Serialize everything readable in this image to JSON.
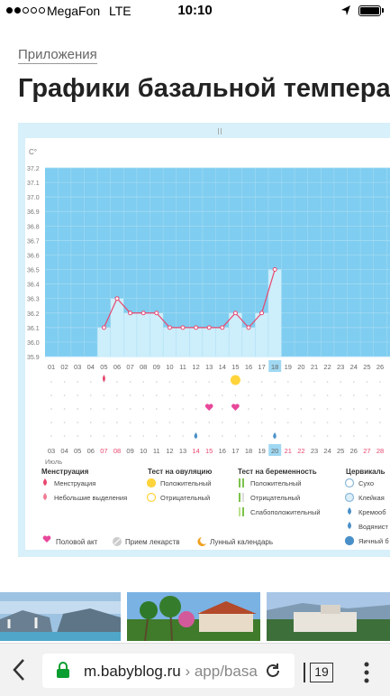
{
  "status": {
    "carrier": "MegaFon",
    "network": "LTE",
    "time": "10:10"
  },
  "breadcrumb": "Приложения",
  "title": "Графики базальной температ",
  "chart_data": {
    "type": "line",
    "ylabel": "C°",
    "y_ticks": [
      "37.2",
      "37.1",
      "37.0",
      "36.9",
      "36.8",
      "36.7",
      "36.6",
      "36.5",
      "36.4",
      "36.3",
      "36.2",
      "36.1",
      "36.0",
      "35.9"
    ],
    "ylim": [
      35.9,
      37.2
    ],
    "x": [
      "01",
      "02",
      "03",
      "04",
      "05",
      "06",
      "07",
      "08",
      "09",
      "10",
      "11",
      "12",
      "13",
      "14",
      "15",
      "16",
      "17",
      "18",
      "19",
      "20",
      "21",
      "22",
      "23",
      "24",
      "25",
      "26"
    ],
    "values": [
      null,
      null,
      null,
      null,
      36.1,
      36.3,
      36.2,
      36.2,
      36.2,
      36.1,
      36.1,
      36.1,
      36.1,
      36.1,
      36.2,
      36.1,
      36.2,
      36.5,
      null,
      null,
      null,
      null,
      null,
      null,
      null,
      null
    ],
    "current_index": 17,
    "grid": true
  },
  "calendar": {
    "days": [
      "03",
      "04",
      "05",
      "06",
      "07",
      "08",
      "09",
      "10",
      "11",
      "12",
      "13",
      "14",
      "15",
      "16",
      "17",
      "18",
      "19",
      "20",
      "21",
      "22",
      "23",
      "24",
      "25",
      "26",
      "27",
      "28"
    ],
    "red_days": [
      "07",
      "08",
      "14",
      "15",
      "21",
      "22",
      "27",
      "28"
    ],
    "current": "20",
    "month": "Июль"
  },
  "legend": {
    "menstruation": {
      "title": "Менструация",
      "items": [
        "Менструация",
        "Небольшие выделения"
      ]
    },
    "ovulation": {
      "title": "Тест на овуляцию",
      "items": [
        "Положительный",
        "Отрицательный"
      ]
    },
    "pregnancy": {
      "title": "Тест на беременность",
      "items": [
        "Положительный",
        "Отрицательный",
        "Слабоположительный"
      ]
    },
    "cervical": {
      "title": "Цервикаль",
      "items": [
        "Сухо",
        "Клейкая",
        "Кремооб",
        "Водянист",
        "Яичный б"
      ]
    },
    "bottom": [
      "Половой акт",
      "Прием лекарств",
      "Лунный календарь"
    ]
  },
  "colors": {
    "accent": "#e8476f",
    "plot_bg": "#7fcdf0",
    "bar": "#cdeefb",
    "frame": "#d7f0fa"
  },
  "browser": {
    "url_host": "m.babyblog.ru",
    "url_sep": " › ",
    "url_rest": "app/basa",
    "tab_count": "19"
  }
}
